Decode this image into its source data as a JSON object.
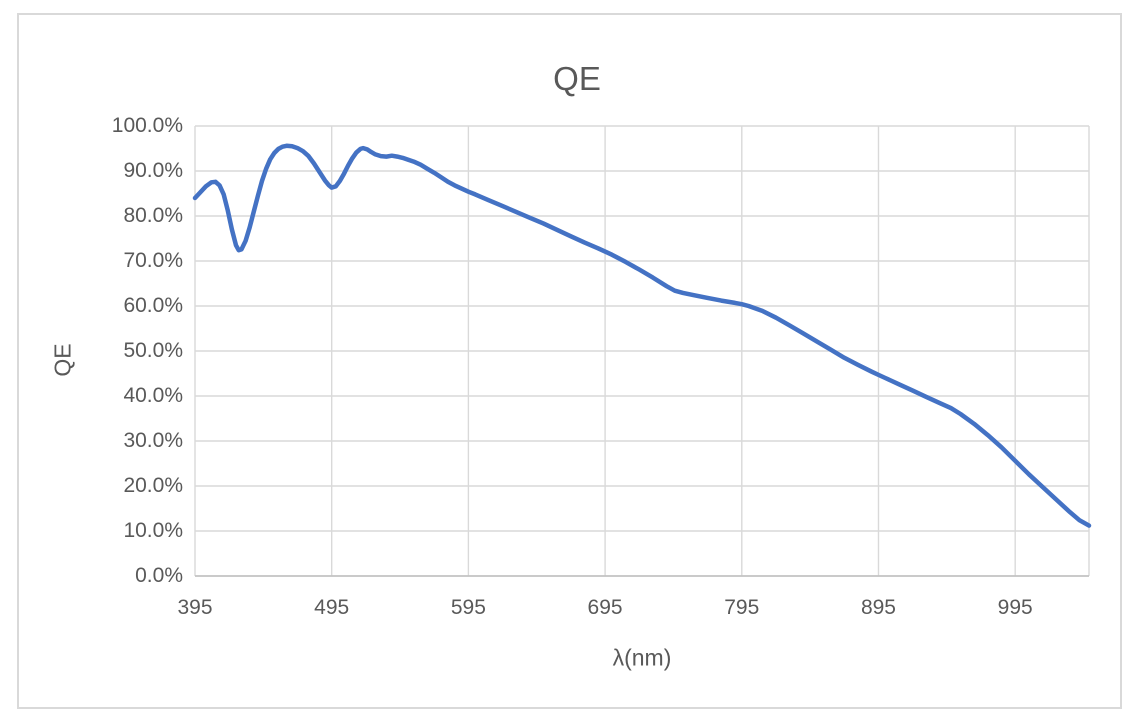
{
  "chart_data": {
    "type": "line",
    "title": "QE",
    "xlabel": "λ(nm)",
    "ylabel": "QE",
    "legend": "none",
    "grid": true,
    "xlim": [
      395,
      1049
    ],
    "ylim": [
      0,
      100
    ],
    "x_axis": {
      "tick_labels": [
        "395",
        "495",
        "595",
        "695",
        "795",
        "895",
        "995"
      ],
      "tick_values": [
        395,
        495,
        595,
        695,
        795,
        895,
        995
      ]
    },
    "y_axis": {
      "tick_labels": [
        "0.0%",
        "10.0%",
        "20.0%",
        "30.0%",
        "40.0%",
        "50.0%",
        "60.0%",
        "70.0%",
        "80.0%",
        "90.0%",
        "100.0%"
      ],
      "tick_values": [
        0,
        10,
        20,
        30,
        40,
        50,
        60,
        70,
        80,
        90,
        100
      ]
    },
    "colors": {
      "line": "#4472C4",
      "gridline": "#D9D9D9",
      "axis_line": "#BFBFBF",
      "text": "#595959",
      "frame_border": "#D9D9D9",
      "background": "#FFFFFF"
    },
    "series": [
      {
        "name": "QE",
        "unit": "percent",
        "points": [
          [
            395,
            84.0
          ],
          [
            399,
            85.3
          ],
          [
            403,
            86.6
          ],
          [
            407,
            87.5
          ],
          [
            410,
            87.6
          ],
          [
            413,
            86.8
          ],
          [
            416,
            84.8
          ],
          [
            419,
            81.2
          ],
          [
            422,
            77.0
          ],
          [
            425,
            73.5
          ],
          [
            427,
            72.4
          ],
          [
            429,
            72.6
          ],
          [
            432,
            74.5
          ],
          [
            435,
            77.5
          ],
          [
            438,
            81.0
          ],
          [
            441,
            84.5
          ],
          [
            444,
            87.8
          ],
          [
            447,
            90.5
          ],
          [
            450,
            92.6
          ],
          [
            453,
            94.0
          ],
          [
            456,
            94.9
          ],
          [
            459,
            95.4
          ],
          [
            462,
            95.6
          ],
          [
            466,
            95.5
          ],
          [
            470,
            95.1
          ],
          [
            474,
            94.4
          ],
          [
            478,
            93.3
          ],
          [
            482,
            91.7
          ],
          [
            486,
            89.8
          ],
          [
            490,
            87.9
          ],
          [
            493,
            86.8
          ],
          [
            495,
            86.3
          ],
          [
            498,
            86.6
          ],
          [
            501,
            87.8
          ],
          [
            504,
            89.4
          ],
          [
            507,
            91.2
          ],
          [
            510,
            92.8
          ],
          [
            513,
            94.1
          ],
          [
            516,
            94.9
          ],
          [
            518,
            95.1
          ],
          [
            521,
            94.8
          ],
          [
            524,
            94.2
          ],
          [
            527,
            93.7
          ],
          [
            531,
            93.3
          ],
          [
            535,
            93.2
          ],
          [
            539,
            93.4
          ],
          [
            543,
            93.2
          ],
          [
            547,
            92.9
          ],
          [
            551,
            92.5
          ],
          [
            555,
            92.1
          ],
          [
            560,
            91.4
          ],
          [
            565,
            90.5
          ],
          [
            570,
            89.6
          ],
          [
            575,
            88.6
          ],
          [
            580,
            87.6
          ],
          [
            585,
            86.8
          ],
          [
            590,
            86.1
          ],
          [
            595,
            85.4
          ],
          [
            600,
            84.8
          ],
          [
            610,
            83.5
          ],
          [
            620,
            82.2
          ],
          [
            630,
            80.9
          ],
          [
            640,
            79.6
          ],
          [
            650,
            78.3
          ],
          [
            660,
            76.9
          ],
          [
            670,
            75.5
          ],
          [
            680,
            74.1
          ],
          [
            690,
            72.8
          ],
          [
            700,
            71.4
          ],
          [
            710,
            69.8
          ],
          [
            720,
            68.1
          ],
          [
            730,
            66.3
          ],
          [
            740,
            64.4
          ],
          [
            746,
            63.4
          ],
          [
            752,
            62.9
          ],
          [
            760,
            62.4
          ],
          [
            770,
            61.8
          ],
          [
            780,
            61.2
          ],
          [
            790,
            60.7
          ],
          [
            795,
            60.4
          ],
          [
            800,
            60.0
          ],
          [
            810,
            58.9
          ],
          [
            820,
            57.4
          ],
          [
            830,
            55.7
          ],
          [
            840,
            53.9
          ],
          [
            850,
            52.1
          ],
          [
            860,
            50.3
          ],
          [
            870,
            48.5
          ],
          [
            880,
            46.9
          ],
          [
            890,
            45.4
          ],
          [
            895,
            44.7
          ],
          [
            900,
            44.0
          ],
          [
            910,
            42.6
          ],
          [
            920,
            41.2
          ],
          [
            930,
            39.8
          ],
          [
            940,
            38.4
          ],
          [
            948,
            37.3
          ],
          [
            955,
            36.0
          ],
          [
            965,
            33.8
          ],
          [
            975,
            31.3
          ],
          [
            985,
            28.6
          ],
          [
            995,
            25.6
          ],
          [
            1005,
            22.6
          ],
          [
            1015,
            19.8
          ],
          [
            1025,
            17.0
          ],
          [
            1035,
            14.2
          ],
          [
            1042,
            12.4
          ],
          [
            1049,
            11.2
          ]
        ]
      }
    ]
  }
}
